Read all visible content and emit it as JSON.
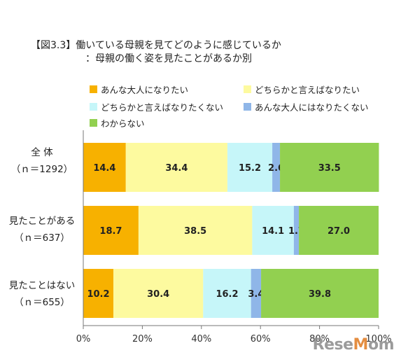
{
  "title": {
    "line1": "【図3.3】働いている母親を見てどのように感じているか",
    "line2": "：母親の働く姿を見たことがあるか別"
  },
  "chart_data": {
    "type": "bar",
    "orientation": "horizontal-stacked-100",
    "categories": [
      {
        "name": "全 体",
        "n": "（ｎ＝1292）"
      },
      {
        "name": "見たことがある",
        "n": "（ｎ＝637）"
      },
      {
        "name": "見たことはない",
        "n": "（ｎ＝655）"
      }
    ],
    "series": [
      {
        "name": "あんな大人になりたい",
        "color": "#f7b100",
        "values": [
          14.4,
          18.7,
          10.2
        ]
      },
      {
        "name": "どちらかと言えばなりたい",
        "color": "#fdfa9f",
        "values": [
          34.4,
          38.5,
          30.4
        ]
      },
      {
        "name": "どちらかと言えばなりたくない",
        "color": "#c6f6f9",
        "values": [
          15.2,
          14.1,
          16.2
        ]
      },
      {
        "name": "あんな大人にはなりたくない",
        "color": "#8fb6e8",
        "values": [
          2.6,
          1.7,
          3.4
        ]
      },
      {
        "name": "わからない",
        "color": "#92d050",
        "values": [
          33.5,
          27.0,
          39.8
        ]
      }
    ],
    "xlim": [
      0,
      100
    ],
    "xticks": [
      "0%",
      "20%",
      "40%",
      "60%",
      "80%",
      "100%"
    ],
    "legend_position": "top"
  },
  "watermark": {
    "text": "ReseMom",
    "small": "リセマム"
  }
}
